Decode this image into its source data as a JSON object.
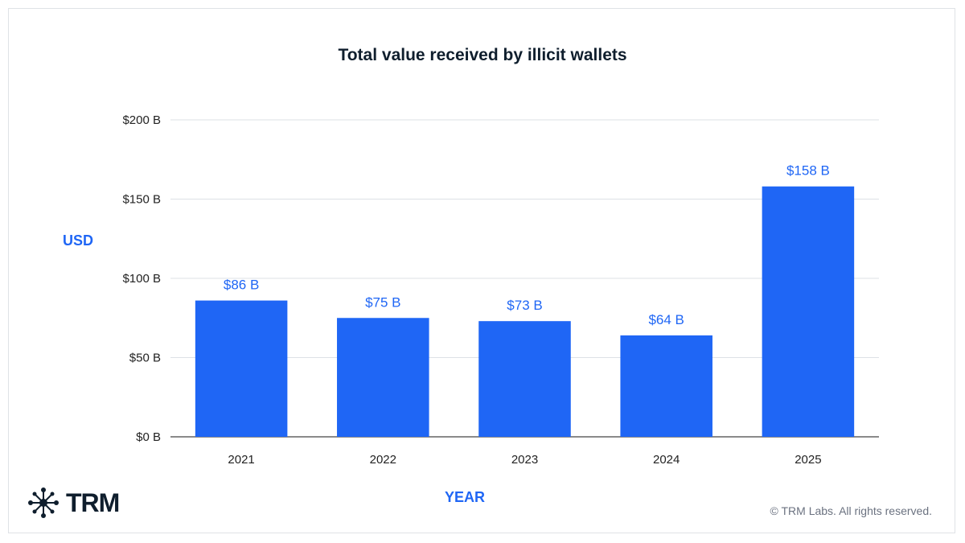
{
  "chart_data": {
    "type": "bar",
    "title": "Total value received by illicit wallets",
    "xlabel": "YEAR",
    "ylabel": "USD",
    "categories": [
      "2021",
      "2022",
      "2023",
      "2024",
      "2025"
    ],
    "values": [
      86,
      75,
      73,
      64,
      158
    ],
    "data_labels": [
      "$86 B",
      "$75 B",
      "$73 B",
      "$64 B",
      "$158 B"
    ],
    "yticks": [
      0,
      50,
      100,
      150,
      200
    ],
    "ytick_labels": [
      "$0 B",
      "$50 B",
      "$100 B",
      "$150 B",
      "$200 B"
    ],
    "ylim": [
      0,
      200
    ],
    "grid": true,
    "bar_color": "#1f66f5"
  },
  "branding": {
    "logo_text": "TRM",
    "copyright": "© TRM Labs. All rights reserved."
  }
}
